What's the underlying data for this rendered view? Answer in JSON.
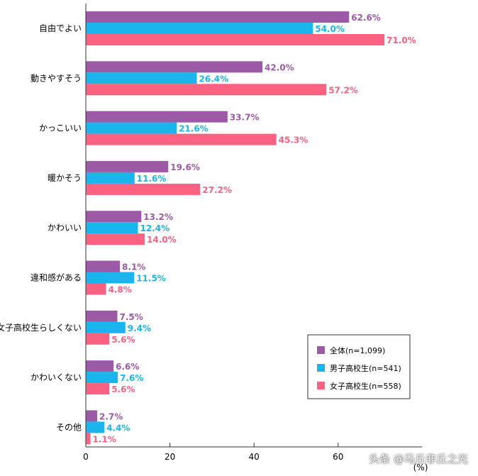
{
  "chart_data": {
    "type": "bar",
    "orientation": "horizontal",
    "categories": [
      "自由でよい",
      "動きやすそう",
      "かっこいい",
      "暖かそう",
      "かわいい",
      "違和感がある",
      "女子高校生らしくない",
      "かわいくない",
      "その他"
    ],
    "series": [
      {
        "name": "全体(n=1,099)",
        "color": "#9b59a6",
        "values": [
          62.6,
          42.0,
          33.7,
          19.6,
          13.2,
          8.1,
          7.5,
          6.6,
          2.7
        ]
      },
      {
        "name": "男子高校生(n=541)",
        "color": "#19b5ec",
        "values": [
          54.0,
          26.4,
          21.6,
          11.6,
          12.4,
          11.5,
          9.4,
          7.6,
          4.4
        ]
      },
      {
        "name": "女子高校生(n=558)",
        "color": "#fb6282",
        "values": [
          71.0,
          57.2,
          45.3,
          27.2,
          14.0,
          4.8,
          5.6,
          5.6,
          1.1
        ]
      }
    ],
    "value_labels": [
      [
        "62.6%",
        "42.0%",
        "33.7%",
        "19.6%",
        "13.2%",
        "8.1%",
        "7.5%",
        "6.6%",
        "2.7%"
      ],
      [
        "54.0%",
        "26.4%",
        "21.6%",
        "11.6%",
        "12.4%",
        "11.5%",
        "9.4%",
        "7.6%",
        "4.4%"
      ],
      [
        "71.0%",
        "57.2%",
        "45.3%",
        "27.2%",
        "14.0%",
        "4.8%",
        "5.6%",
        "5.6%",
        "1.1%"
      ]
    ],
    "x_ticks": [
      "0",
      "20",
      "40",
      "60"
    ],
    "xlim": [
      0,
      80
    ],
    "unit_label": "(%)",
    "grid": false,
    "legend_position": "bottom-right"
  },
  "watermark": "头条 @马丘非丘之光"
}
